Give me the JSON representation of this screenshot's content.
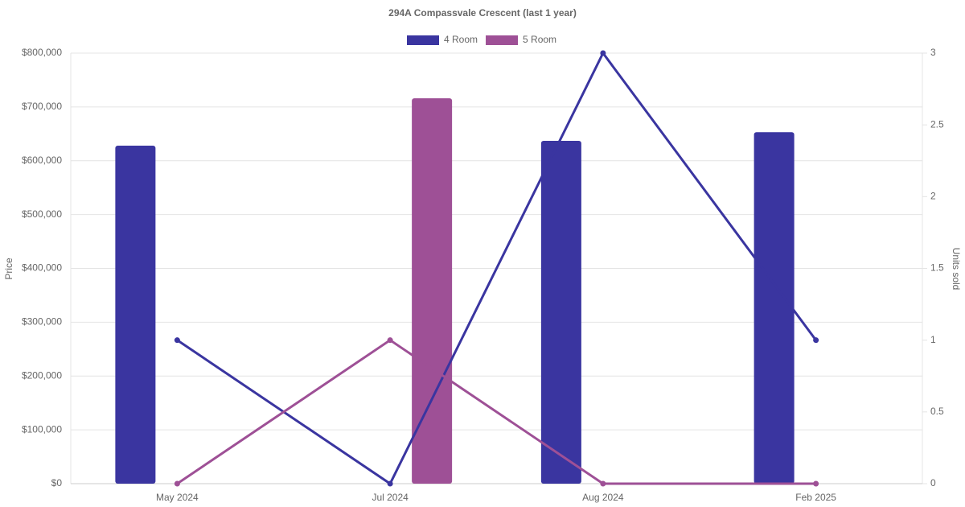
{
  "chart_data": {
    "type": "bar-line",
    "title": "294A Compassvale Crescent (last 1 year)",
    "y_label": "Price",
    "y2_label": "Units sold",
    "categories": [
      "May 2024",
      "Jul 2024",
      "Aug 2024",
      "Feb 2025"
    ],
    "series": [
      {
        "name": "4 Room",
        "type": "bar",
        "color": "#3a35a0",
        "values": [
          628000,
          null,
          637000,
          653000
        ]
      },
      {
        "name": "5 Room",
        "type": "bar",
        "color": "#9e5096",
        "values": [
          null,
          716000,
          null,
          null
        ]
      },
      {
        "name": "4 Room",
        "type": "line",
        "axis": "y2",
        "color": "#3a35a0",
        "values": [
          1,
          0,
          3,
          1
        ]
      },
      {
        "name": "5 Room",
        "type": "line",
        "axis": "y2",
        "color": "#9e5096",
        "values": [
          0,
          1,
          0,
          0
        ]
      }
    ],
    "ylim": [
      0,
      800000
    ],
    "yticks": [
      {
        "value": 0,
        "label": "$0"
      },
      {
        "value": 100000,
        "label": "$100,000"
      },
      {
        "value": 200000,
        "label": "$200,000"
      },
      {
        "value": 300000,
        "label": "$300,000"
      },
      {
        "value": 400000,
        "label": "$400,000"
      },
      {
        "value": 500000,
        "label": "$500,000"
      },
      {
        "value": 600000,
        "label": "$600,000"
      },
      {
        "value": 700000,
        "label": "$700,000"
      },
      {
        "value": 800000,
        "label": "$800,000"
      }
    ],
    "y2lim": [
      0,
      3
    ],
    "y2ticks": [
      0,
      0.5,
      1,
      1.5,
      2,
      2.5,
      3
    ],
    "grid": true
  }
}
